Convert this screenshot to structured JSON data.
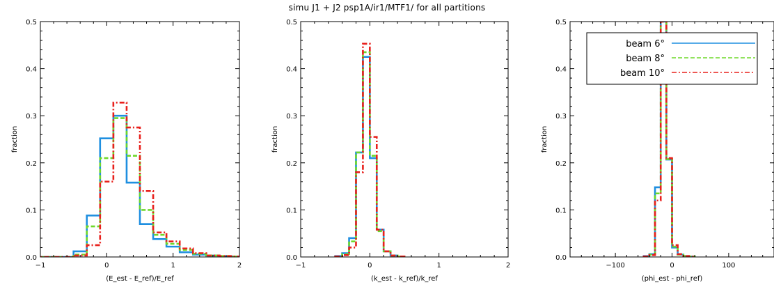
{
  "title": "simu J1 + J2 psp1A/ir1/MTF1/ for all partitions",
  "colors": {
    "beam6": "#1f8fe0",
    "beam8": "#6ed82a",
    "beam10": "#e8201c"
  },
  "chart_data": [
    {
      "type": "line",
      "ylabel": "fraction",
      "xlabel": "(E_est - E_ref)/E_ref",
      "xlim": [
        -1,
        2
      ],
      "ylim": [
        0,
        0.5
      ],
      "xticks": [
        -1,
        0,
        1,
        2
      ],
      "yticks": [
        0.0,
        0.1,
        0.2,
        0.3,
        0.4,
        0.5
      ],
      "ytick_labels": [
        "0.0",
        "0.1",
        "0.2",
        "0.3",
        "0.4",
        "0.5"
      ],
      "bin_edges": [
        -1.1,
        -0.9,
        -0.7,
        -0.5,
        -0.3,
        -0.1,
        0.1,
        0.3,
        0.5,
        0.7,
        0.9,
        1.1,
        1.3,
        1.5,
        1.7,
        1.9,
        2.1
      ],
      "series": [
        {
          "name": "beam 6°",
          "color_key": "beam6",
          "dash": "",
          "values": [
            0,
            0,
            0,
            0.012,
            0.088,
            0.252,
            0.3,
            0.158,
            0.07,
            0.038,
            0.022,
            0.01,
            0.005,
            0.003,
            0.001,
            0.001
          ]
        },
        {
          "name": "beam 8°",
          "color_key": "beam8",
          "dash": "6,3",
          "values": [
            0,
            0,
            0,
            0.005,
            0.065,
            0.21,
            0.295,
            0.215,
            0.1,
            0.047,
            0.028,
            0.015,
            0.007,
            0.003,
            0.002,
            0.001
          ]
        },
        {
          "name": "beam 10°",
          "color_key": "beam10",
          "dash": "7,3,2,3",
          "values": [
            0,
            0,
            0,
            0.003,
            0.025,
            0.16,
            0.328,
            0.275,
            0.14,
            0.052,
            0.033,
            0.018,
            0.008,
            0.003,
            0.002,
            0.001
          ]
        }
      ]
    },
    {
      "type": "line",
      "ylabel": "fraction",
      "xlabel": "(k_est - k_ref)/k_ref",
      "xlim": [
        -1,
        2
      ],
      "ylim": [
        0,
        0.5
      ],
      "xticks": [
        -1,
        0,
        1,
        2
      ],
      "yticks": [
        0.0,
        0.1,
        0.2,
        0.3,
        0.4,
        0.5
      ],
      "ytick_labels": [
        "0.0",
        "0.1",
        "0.2",
        "0.3",
        "0.4",
        "0.5"
      ],
      "bin_edges": [
        -0.5,
        -0.4,
        -0.3,
        -0.2,
        -0.1,
        0.0,
        0.1,
        0.2,
        0.3,
        0.4,
        0.5
      ],
      "series": [
        {
          "name": "beam 6°",
          "color_key": "beam6",
          "dash": "",
          "values": [
            0.002,
            0.008,
            0.04,
            0.222,
            0.425,
            0.21,
            0.058,
            0.012,
            0.003,
            0.001
          ]
        },
        {
          "name": "beam 8°",
          "color_key": "beam8",
          "dash": "6,3",
          "values": [
            0.001,
            0.006,
            0.033,
            0.222,
            0.435,
            0.215,
            0.055,
            0.012,
            0.003,
            0.001
          ]
        },
        {
          "name": "beam 10°",
          "color_key": "beam10",
          "dash": "7,3,2,3",
          "values": [
            0.001,
            0.004,
            0.02,
            0.18,
            0.453,
            0.255,
            0.058,
            0.012,
            0.003,
            0.001
          ]
        }
      ]
    },
    {
      "type": "line",
      "ylabel": "fraction",
      "xlabel": "(phi_est - phi_ref)",
      "xlim": [
        -180,
        180
      ],
      "ylim": [
        0,
        0.5
      ],
      "xticks": [
        -100,
        0,
        100
      ],
      "yticks": [
        0.0,
        0.1,
        0.2,
        0.3,
        0.4,
        0.5
      ],
      "ytick_labels": [
        "0.0",
        "0.1",
        "0.2",
        "0.3",
        "0.4",
        "0.5"
      ],
      "bin_edges": [
        -50,
        -40,
        -30,
        -20,
        -10,
        0,
        10,
        20,
        30,
        40
      ],
      "series": [
        {
          "name": "beam 6°",
          "color_key": "beam6",
          "dash": "",
          "values": [
            0.002,
            0.006,
            0.148,
            0.58,
            0.207,
            0.02,
            0.005,
            0.002,
            0.001
          ]
        },
        {
          "name": "beam 8°",
          "color_key": "beam8",
          "dash": "6,3",
          "values": [
            0.001,
            0.005,
            0.135,
            0.58,
            0.208,
            0.022,
            0.005,
            0.002,
            0.001
          ]
        },
        {
          "name": "beam 10°",
          "color_key": "beam10",
          "dash": "7,3,2,3",
          "values": [
            0.001,
            0.004,
            0.12,
            0.58,
            0.21,
            0.025,
            0.006,
            0.002,
            0.001
          ]
        }
      ],
      "legend": {
        "placement": "top-left",
        "entries": [
          "beam 6°",
          "beam 8°",
          "beam 10°"
        ]
      }
    }
  ]
}
